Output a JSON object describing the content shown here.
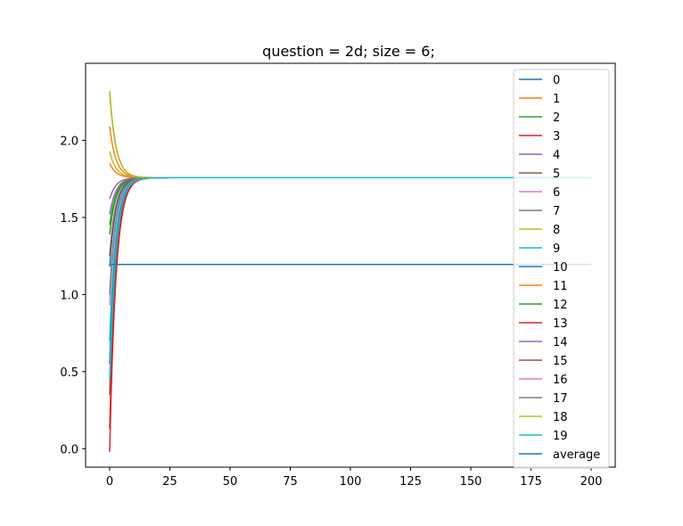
{
  "chart_data": {
    "type": "line",
    "title": "question = 2d; size = 6;",
    "xlabel": "",
    "ylabel": "",
    "xlim": [
      -10,
      210
    ],
    "ylim": [
      -0.12,
      2.5
    ],
    "xticks": [
      0,
      25,
      50,
      75,
      100,
      125,
      150,
      175,
      200
    ],
    "yticks": [
      0.0,
      0.5,
      1.0,
      1.5,
      2.0
    ],
    "x_range": [
      0,
      200
    ],
    "grid": false,
    "legend_position": "right",
    "series": [
      {
        "name": "0",
        "color": "#1f77b4",
        "start": 1.18,
        "end": 1.758
      },
      {
        "name": "1",
        "color": "#ff7f0e",
        "start": 2.09,
        "end": 1.758
      },
      {
        "name": "2",
        "color": "#2ca02c",
        "start": 1.39,
        "end": 1.758
      },
      {
        "name": "3",
        "color": "#d62728",
        "start": -0.02,
        "end": 1.758
      },
      {
        "name": "4",
        "color": "#9467bd",
        "start": 1.52,
        "end": 1.758
      },
      {
        "name": "5",
        "color": "#8c564b",
        "start": 1.25,
        "end": 1.758
      },
      {
        "name": "6",
        "color": "#e377c2",
        "start": 0.35,
        "end": 1.758
      },
      {
        "name": "7",
        "color": "#7f7f7f",
        "start": 2.31,
        "end": 1.758
      },
      {
        "name": "8",
        "color": "#bcbd22",
        "start": 1.93,
        "end": 1.758
      },
      {
        "name": "9",
        "color": "#17becf",
        "start": 0.7,
        "end": 1.758
      },
      {
        "name": "10",
        "color": "#1f77b4",
        "start": 0.55,
        "end": 1.758
      },
      {
        "name": "11",
        "color": "#ff7f0e",
        "start": 1.85,
        "end": 1.758
      },
      {
        "name": "12",
        "color": "#2ca02c",
        "start": 1.45,
        "end": 1.758
      },
      {
        "name": "13",
        "color": "#d62728",
        "start": 0.13,
        "end": 1.758
      },
      {
        "name": "14",
        "color": "#9467bd",
        "start": 1.62,
        "end": 1.758
      },
      {
        "name": "15",
        "color": "#8c564b",
        "start": 0.35,
        "end": 1.758
      },
      {
        "name": "16",
        "color": "#e377c2",
        "start": 0.93,
        "end": 1.758
      },
      {
        "name": "17",
        "color": "#7f7f7f",
        "start": 1.0,
        "end": 1.758
      },
      {
        "name": "18",
        "color": "#bcbd22",
        "start": 2.32,
        "end": 1.758
      },
      {
        "name": "19",
        "color": "#17becf",
        "start": 0.45,
        "end": 1.758
      },
      {
        "name": "average",
        "color": "#1f77b4",
        "start": 1.195,
        "end": 1.195
      }
    ]
  }
}
